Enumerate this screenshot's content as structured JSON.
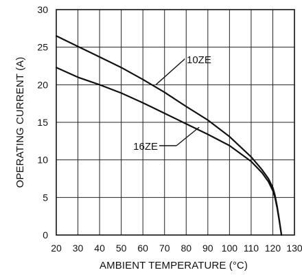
{
  "chart_data": {
    "type": "line",
    "title": "",
    "xlabel": "AMBIENT TEMPERATURE (°C)",
    "ylabel": "OPERATING CURRENT (A)",
    "xlim": [
      20,
      130
    ],
    "ylim": [
      0,
      30
    ],
    "x_ticks": [
      20,
      30,
      40,
      50,
      60,
      70,
      80,
      90,
      100,
      110,
      120,
      130
    ],
    "y_ticks": [
      0,
      5,
      10,
      15,
      20,
      25,
      30
    ],
    "grid": true,
    "legend": "none",
    "series": [
      {
        "name": "10ZE",
        "color": "#111111",
        "x": [
          20,
          30,
          40,
          50,
          60,
          70,
          80,
          90,
          100,
          110,
          115,
          118,
          120,
          121,
          122,
          123,
          124
        ],
        "y": [
          26.5,
          25.1,
          23.7,
          22.3,
          20.7,
          19.0,
          17.1,
          15.3,
          13.1,
          10.4,
          8.7,
          7.5,
          6.3,
          5.3,
          3.8,
          2.0,
          0.0
        ]
      },
      {
        "name": "16ZE",
        "color": "#111111",
        "x": [
          20,
          30,
          40,
          50,
          60,
          70,
          80,
          90,
          100,
          110,
          115,
          118,
          120,
          121,
          122,
          123,
          124
        ],
        "y": [
          22.3,
          21.0,
          20.0,
          18.9,
          17.6,
          16.2,
          14.8,
          13.4,
          11.9,
          9.8,
          8.3,
          7.1,
          5.9,
          5.0,
          3.6,
          1.9,
          0.0
        ]
      }
    ]
  }
}
